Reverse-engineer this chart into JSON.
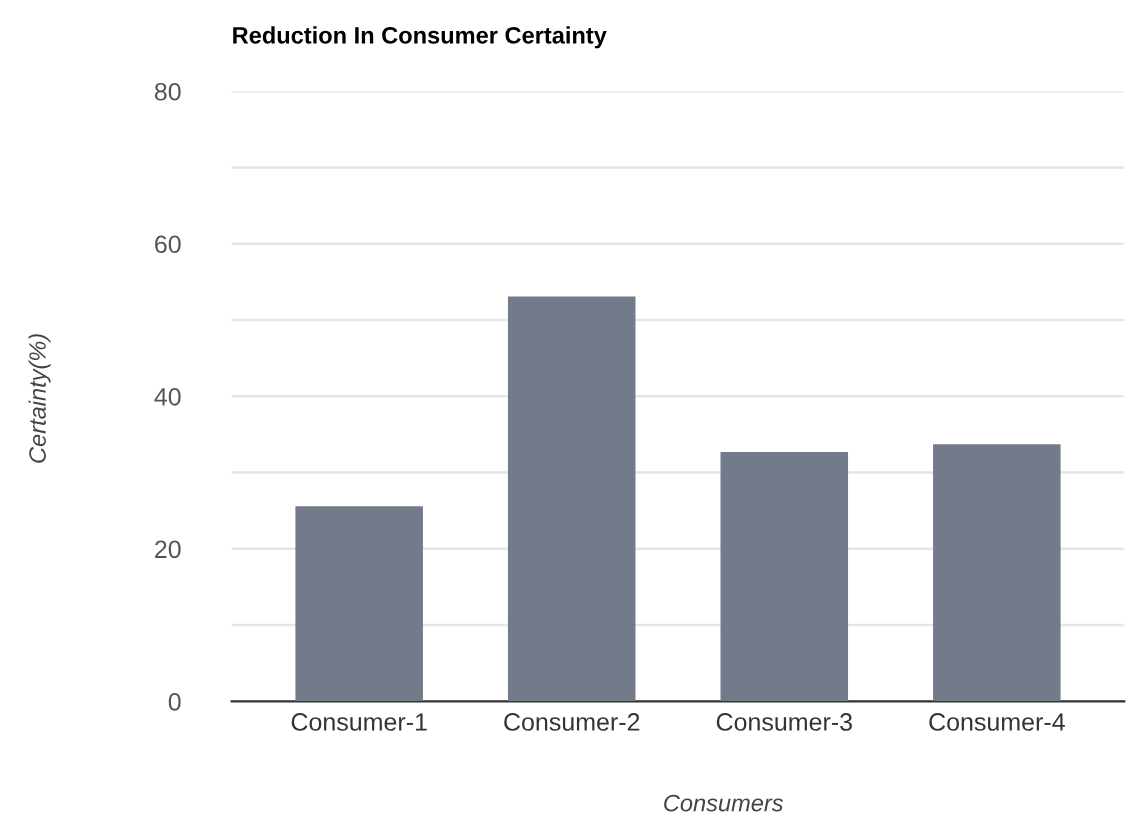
{
  "chart_data": {
    "type": "bar",
    "title": "Reduction In Consumer Certainty",
    "xlabel": "Consumers",
    "ylabel": "Certainty(%)",
    "categories": [
      "Consumer-1",
      "Consumer-2",
      "Consumer-3",
      "Consumer-4"
    ],
    "values": [
      25.6,
      53.1,
      32.7,
      33.7
    ],
    "color": "#737a89",
    "ylim": [
      0,
      80
    ],
    "yticks": [
      0,
      {
        "value": 10,
        "label": null
      },
      20,
      {
        "value": 30,
        "label": null
      },
      40,
      {
        "value": 50,
        "label": null
      },
      60,
      {
        "value": 70,
        "label": null
      },
      80
    ],
    "grid": "y"
  }
}
